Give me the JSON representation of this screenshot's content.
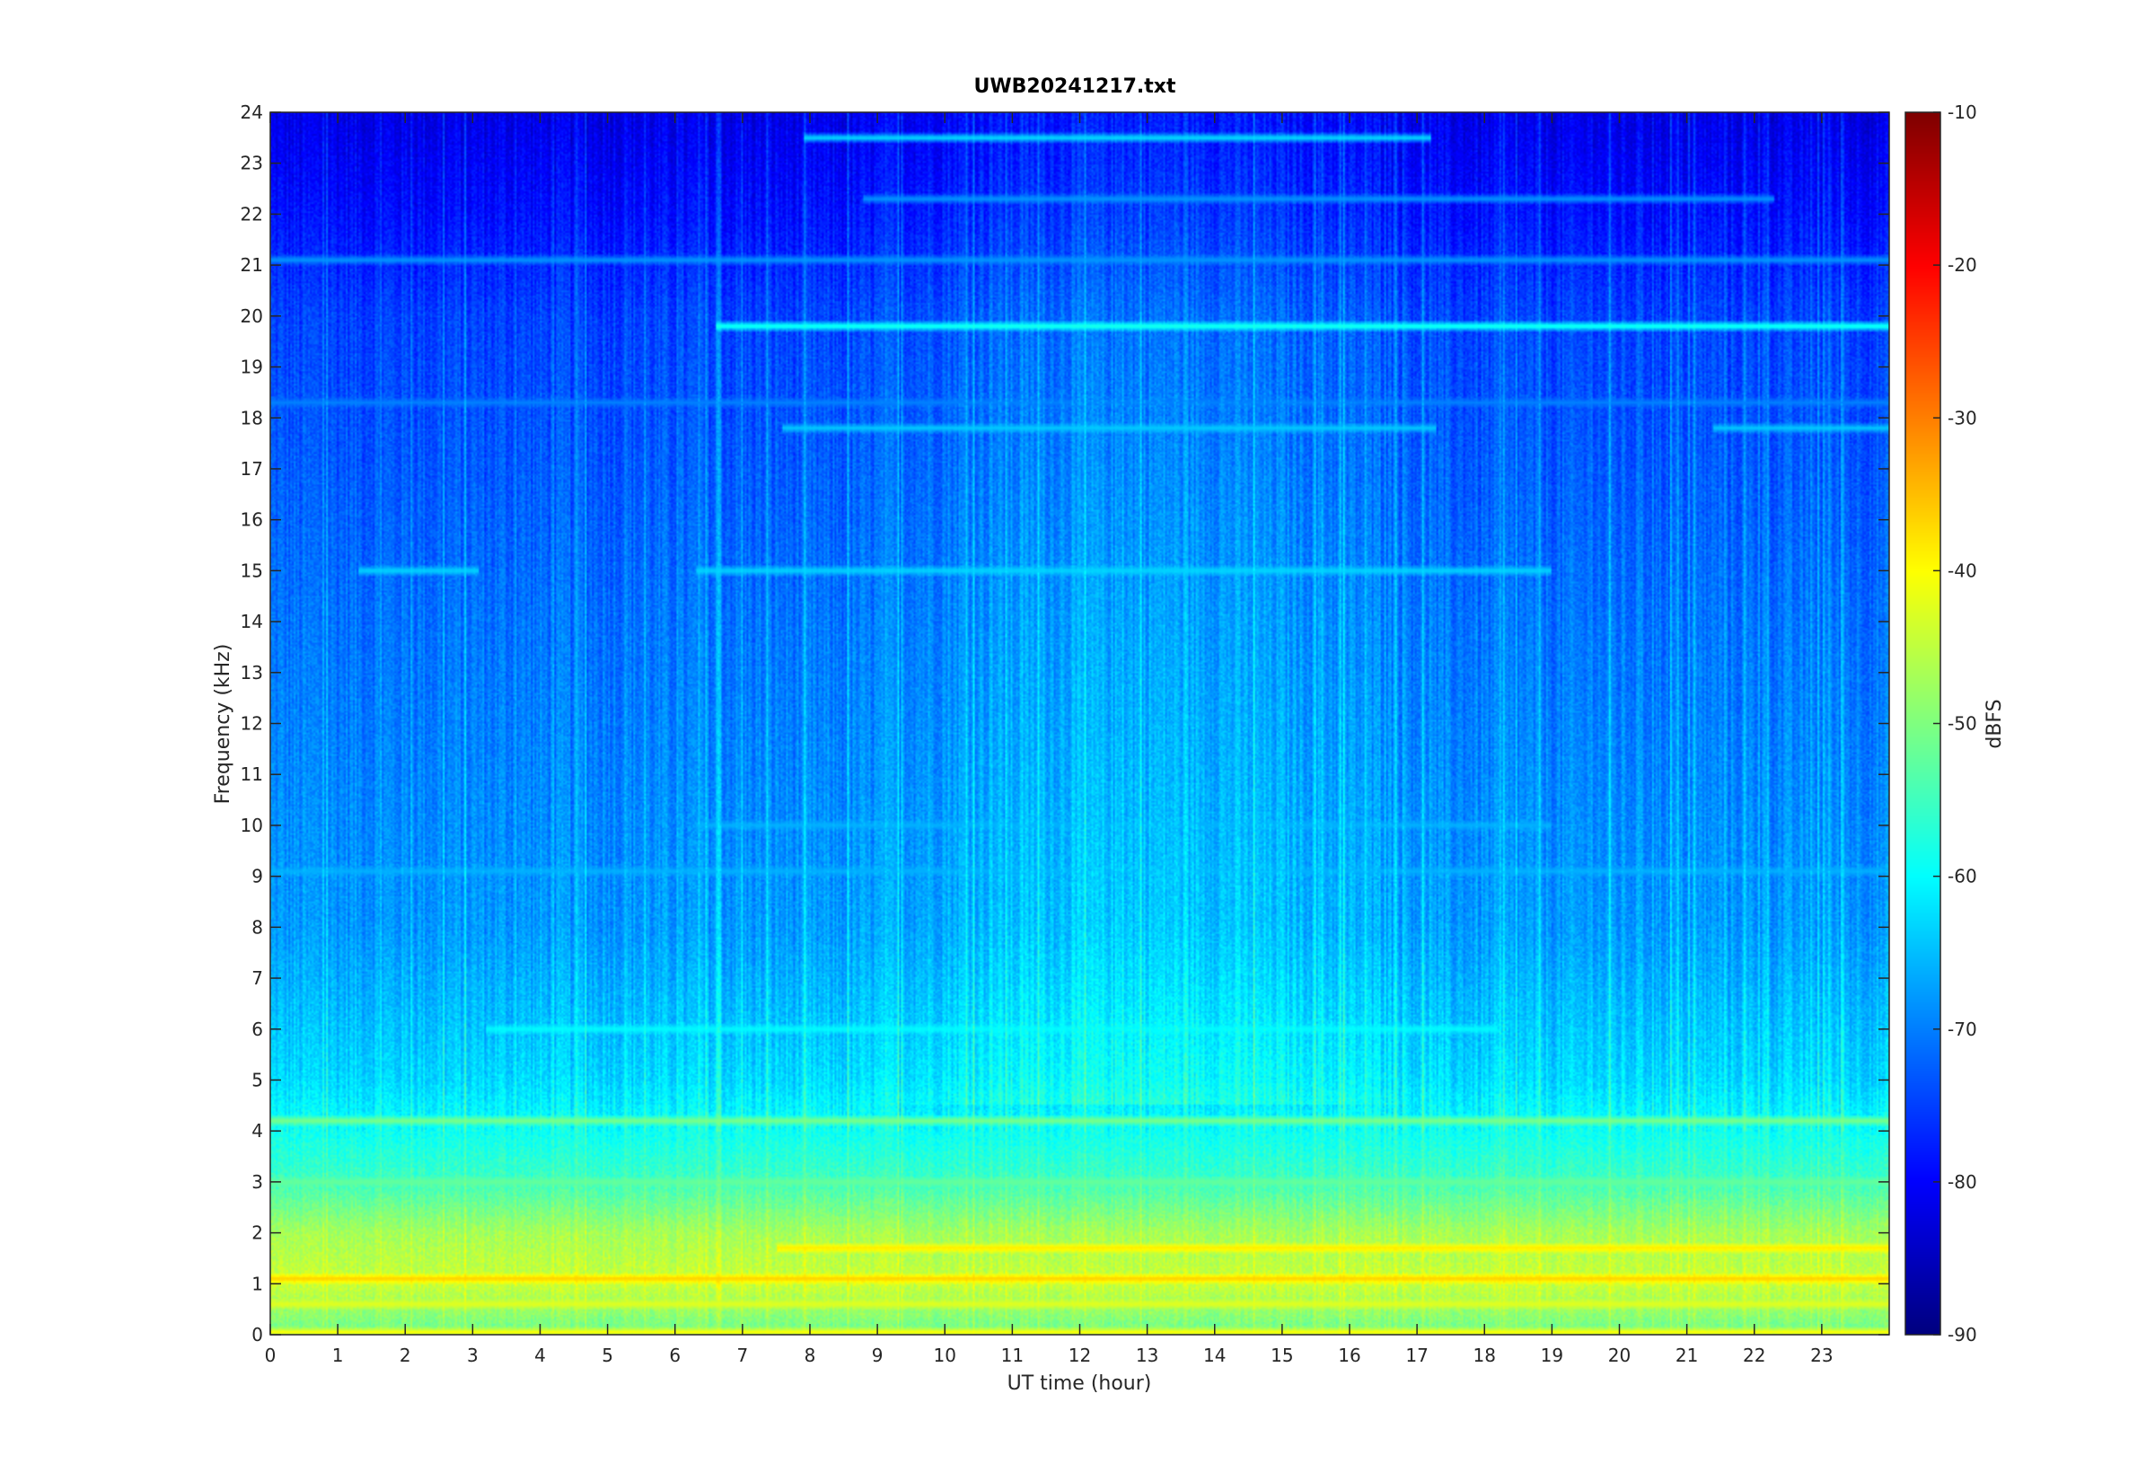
{
  "chart_data": {
    "type": "heatmap",
    "title": "UWB20241217.txt",
    "xlabel": "UT time (hour)",
    "ylabel": "Frequency (kHz)",
    "xlim": [
      0,
      24
    ],
    "ylim": [
      0,
      24
    ],
    "x_ticks": [
      0,
      1,
      2,
      3,
      4,
      5,
      6,
      7,
      8,
      9,
      10,
      11,
      12,
      13,
      14,
      15,
      16,
      17,
      18,
      19,
      20,
      21,
      22,
      23
    ],
    "y_ticks": [
      0,
      1,
      2,
      3,
      4,
      5,
      6,
      7,
      8,
      9,
      10,
      11,
      12,
      13,
      14,
      15,
      16,
      17,
      18,
      19,
      20,
      21,
      22,
      23,
      24
    ],
    "colorbar": {
      "label": "dBFS",
      "range": [
        -90,
        -10
      ],
      "ticks": [
        -10,
        -20,
        -30,
        -40,
        -50,
        -60,
        -70,
        -80,
        -90
      ],
      "colormap": "jet"
    },
    "features": {
      "background_by_freq_khz": [
        [
          0,
          -52
        ],
        [
          1,
          -44
        ],
        [
          2,
          -47
        ],
        [
          3,
          -55
        ],
        [
          5,
          -63
        ],
        [
          8,
          -68
        ],
        [
          14,
          -71
        ],
        [
          20,
          -75
        ],
        [
          22,
          -79
        ],
        [
          24,
          -82
        ]
      ],
      "day_enhancement_hours": [
        8.5,
        17.5
      ],
      "day_enhancement_db": 4,
      "tones": [
        {
          "freq_khz": 19.8,
          "start_h": 6.6,
          "end_h": 24.0,
          "level_db": -57
        },
        {
          "freq_khz": 23.5,
          "start_h": 7.9,
          "end_h": 17.2,
          "level_db": -62
        },
        {
          "freq_khz": 22.3,
          "start_h": 8.8,
          "end_h": 22.3,
          "level_db": -68
        },
        {
          "freq_khz": 21.1,
          "start_h": 0.0,
          "end_h": 24.0,
          "level_db": -68
        },
        {
          "freq_khz": 17.8,
          "start_h": 7.6,
          "end_h": 17.3,
          "level_db": -64
        },
        {
          "freq_khz": 17.8,
          "start_h": 21.4,
          "end_h": 24.0,
          "level_db": -64
        },
        {
          "freq_khz": 18.3,
          "start_h": 0.0,
          "end_h": 24.0,
          "level_db": -70
        },
        {
          "freq_khz": 15.0,
          "start_h": 6.3,
          "end_h": 19.0,
          "level_db": -63
        },
        {
          "freq_khz": 15.0,
          "start_h": 1.3,
          "end_h": 3.1,
          "level_db": -63
        },
        {
          "freq_khz": 10.0,
          "start_h": 6.3,
          "end_h": 19.0,
          "level_db": -66
        },
        {
          "freq_khz": 9.1,
          "start_h": 0.0,
          "end_h": 24.0,
          "level_db": -66
        },
        {
          "freq_khz": 6.0,
          "start_h": 3.2,
          "end_h": 18.2,
          "level_db": -60
        },
        {
          "freq_khz": 4.2,
          "start_h": 0.0,
          "end_h": 24.0,
          "level_db": -50
        },
        {
          "freq_khz": 3.0,
          "start_h": 0.0,
          "end_h": 24.0,
          "level_db": -52
        },
        {
          "freq_khz": 1.1,
          "start_h": 0.0,
          "end_h": 24.0,
          "level_db": -36
        },
        {
          "freq_khz": 1.7,
          "start_h": 7.5,
          "end_h": 24.0,
          "level_db": -38
        },
        {
          "freq_khz": 0.6,
          "start_h": 0.0,
          "end_h": 24.0,
          "level_db": -42
        },
        {
          "freq_khz": 0.05,
          "start_h": 0.0,
          "end_h": 24.0,
          "level_db": -40
        }
      ]
    }
  }
}
